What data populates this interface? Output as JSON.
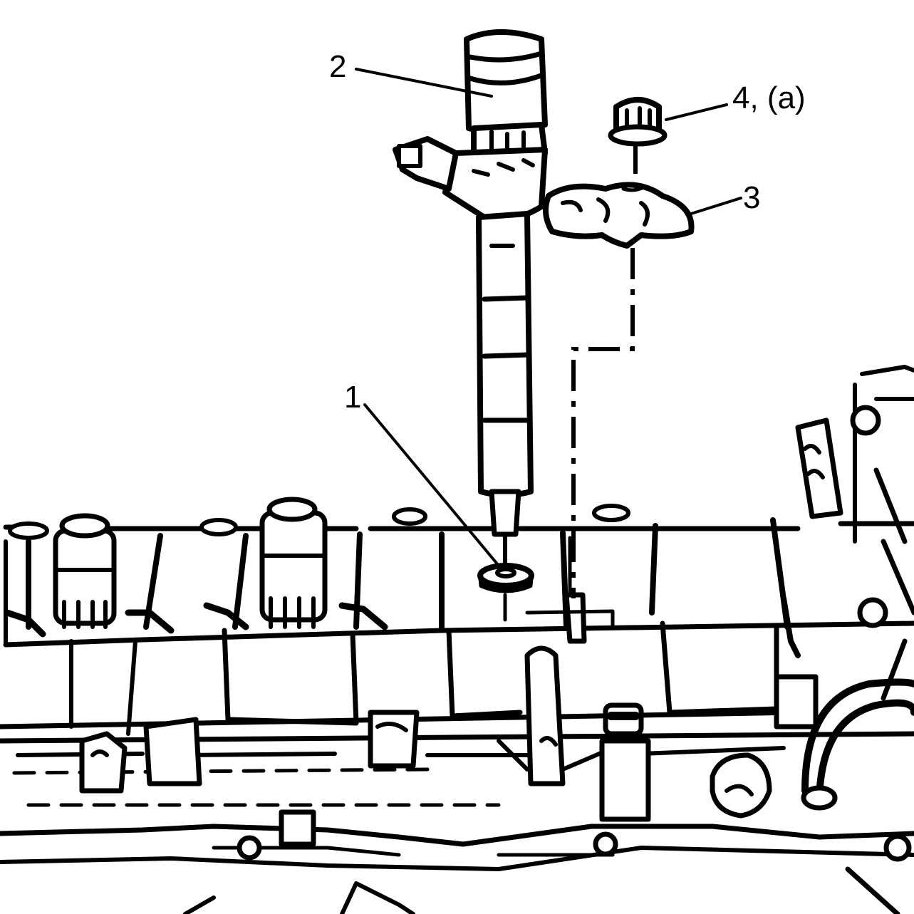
{
  "callouts": {
    "c1": "1",
    "c2": "2",
    "c3": "3",
    "c4": "4, (a)"
  },
  "colors": {
    "ink": "#000000",
    "paper": "#ffffff"
  }
}
